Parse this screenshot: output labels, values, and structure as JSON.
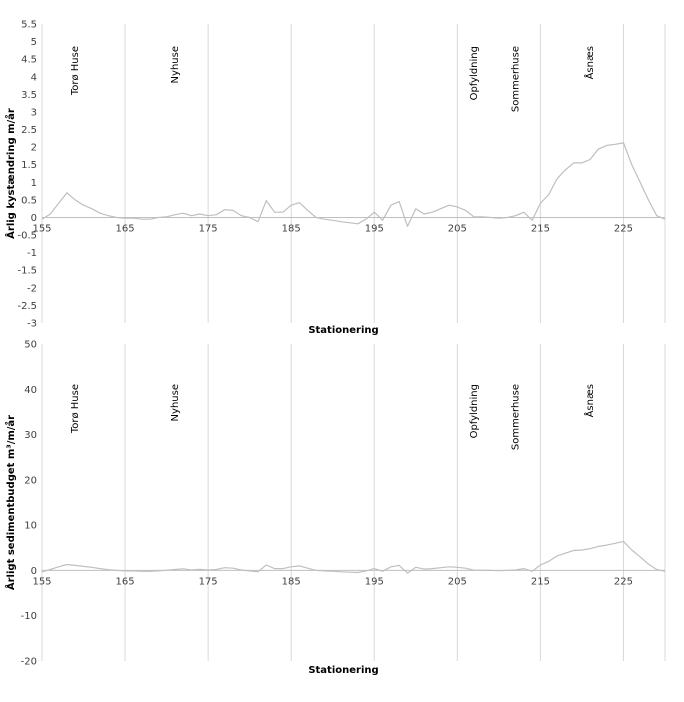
{
  "chart_data": [
    {
      "type": "line",
      "title": "",
      "xlabel": "Stationering",
      "ylabel": "Årlig kystændring m/år",
      "xlim": [
        155,
        230
      ],
      "ylim": [
        -3,
        5.5
      ],
      "xticks": [
        155,
        165,
        175,
        185,
        195,
        205,
        215,
        225
      ],
      "yticks": [
        -3,
        -2.5,
        -2,
        -1.5,
        -1,
        -0.5,
        0,
        0.5,
        1,
        1.5,
        2,
        2.5,
        3,
        3.5,
        4,
        4.5,
        5,
        5.5
      ],
      "ytick_labels": [
        "-3",
        "-2.5",
        "-2",
        "-1.5",
        "-1",
        "-0.5",
        "0",
        "0.5",
        "1",
        "1.5",
        "2",
        "2.5",
        "3",
        "3.5",
        "4",
        "4.5",
        "5",
        "5.5"
      ],
      "grid": "vertical",
      "series_color": "#bfbfbf",
      "annotations": [
        {
          "x": 159,
          "text": "Torø Huse"
        },
        {
          "x": 171,
          "text": "Nyhuse"
        },
        {
          "x": 207,
          "text": "Opfyldning"
        },
        {
          "x": 212,
          "text": "Sommerhuse"
        },
        {
          "x": 221,
          "text": "Åsnæs"
        }
      ],
      "series": [
        {
          "x": [
            155,
            156,
            157,
            158,
            159,
            160,
            161,
            162,
            163,
            164,
            165,
            166,
            167,
            168,
            169,
            170,
            171,
            172,
            173,
            174,
            175,
            176,
            177,
            178,
            179,
            180,
            181,
            182,
            183,
            184,
            185,
            186,
            187,
            188,
            189,
            190,
            191,
            192,
            193,
            194,
            195,
            196,
            197,
            198,
            199,
            200,
            201,
            202,
            203,
            204,
            205,
            206,
            207,
            208,
            209,
            210,
            211,
            212,
            213,
            214,
            215,
            216,
            217,
            218,
            219,
            220,
            221,
            222,
            223,
            224,
            225,
            226,
            227,
            228,
            229,
            230
          ],
          "values": [
            -0.05,
            0.1,
            0.4,
            0.7,
            0.5,
            0.35,
            0.25,
            0.12,
            0.05,
            0.0,
            -0.02,
            -0.02,
            -0.05,
            -0.05,
            0.0,
            0.02,
            0.08,
            0.12,
            0.05,
            0.1,
            0.05,
            0.08,
            0.22,
            0.2,
            0.05,
            0.0,
            -0.12,
            0.48,
            0.15,
            0.15,
            0.35,
            0.42,
            0.2,
            0.0,
            -0.05,
            -0.08,
            -0.12,
            -0.15,
            -0.18,
            -0.05,
            0.15,
            -0.08,
            0.35,
            0.45,
            -0.25,
            0.25,
            0.1,
            0.15,
            0.25,
            0.35,
            0.3,
            0.2,
            0.02,
            0.02,
            0.0,
            -0.02,
            0.0,
            0.05,
            0.15,
            -0.08,
            0.4,
            0.65,
            1.1,
            1.35,
            1.55,
            1.55,
            1.65,
            1.95,
            2.05,
            2.08,
            2.12,
            1.5,
            1.0,
            0.5,
            0.05,
            -0.05
          ]
        }
      ]
    },
    {
      "type": "line",
      "title": "",
      "xlabel": "Stationering",
      "ylabel": "Årligt sedimentbudget m³/m/år",
      "xlim": [
        155,
        230
      ],
      "ylim": [
        -20,
        50
      ],
      "xticks": [
        155,
        165,
        175,
        185,
        195,
        205,
        215,
        225
      ],
      "yticks": [
        -20,
        -10,
        0,
        10,
        20,
        30,
        40,
        50
      ],
      "ytick_labels": [
        "-20",
        "-10",
        "0",
        "10",
        "20",
        "30",
        "40",
        "50"
      ],
      "grid": "vertical",
      "series_color": "#bfbfbf",
      "annotations": [
        {
          "x": 159,
          "text": "Torø Huse"
        },
        {
          "x": 171,
          "text": "Nyhuse"
        },
        {
          "x": 207,
          "text": "Opfyldning"
        },
        {
          "x": 212,
          "text": "Sommerhuse"
        },
        {
          "x": 221,
          "text": "Åsnæs"
        }
      ],
      "series": [
        {
          "x": [
            155,
            156,
            157,
            158,
            159,
            160,
            161,
            162,
            163,
            164,
            165,
            166,
            167,
            168,
            169,
            170,
            171,
            172,
            173,
            174,
            175,
            176,
            177,
            178,
            179,
            180,
            181,
            182,
            183,
            184,
            185,
            186,
            187,
            188,
            189,
            190,
            191,
            192,
            193,
            194,
            195,
            196,
            197,
            198,
            199,
            200,
            201,
            202,
            203,
            204,
            205,
            206,
            207,
            208,
            209,
            210,
            211,
            212,
            213,
            214,
            215,
            216,
            217,
            218,
            219,
            220,
            221,
            222,
            223,
            224,
            225,
            226,
            227,
            228,
            229,
            230
          ],
          "values": [
            -0.3,
            0.2,
            0.8,
            1.3,
            1.1,
            0.9,
            0.7,
            0.4,
            0.15,
            0.0,
            -0.1,
            -0.1,
            -0.2,
            -0.2,
            -0.1,
            0.05,
            0.2,
            0.35,
            0.1,
            0.25,
            0.1,
            0.2,
            0.6,
            0.5,
            0.1,
            -0.1,
            -0.3,
            1.2,
            0.4,
            0.4,
            0.8,
            1.0,
            0.5,
            0.0,
            -0.1,
            -0.2,
            -0.3,
            -0.4,
            -0.45,
            -0.1,
            0.4,
            -0.2,
            0.8,
            1.1,
            -0.6,
            0.7,
            0.3,
            0.4,
            0.6,
            0.8,
            0.7,
            0.5,
            0.05,
            0.05,
            0.0,
            -0.05,
            0.0,
            0.1,
            0.4,
            -0.2,
            1.2,
            2.0,
            3.2,
            3.8,
            4.4,
            4.5,
            4.8,
            5.3,
            5.6,
            6.0,
            6.4,
            4.5,
            3.0,
            1.4,
            0.2,
            -0.2
          ]
        }
      ]
    }
  ]
}
